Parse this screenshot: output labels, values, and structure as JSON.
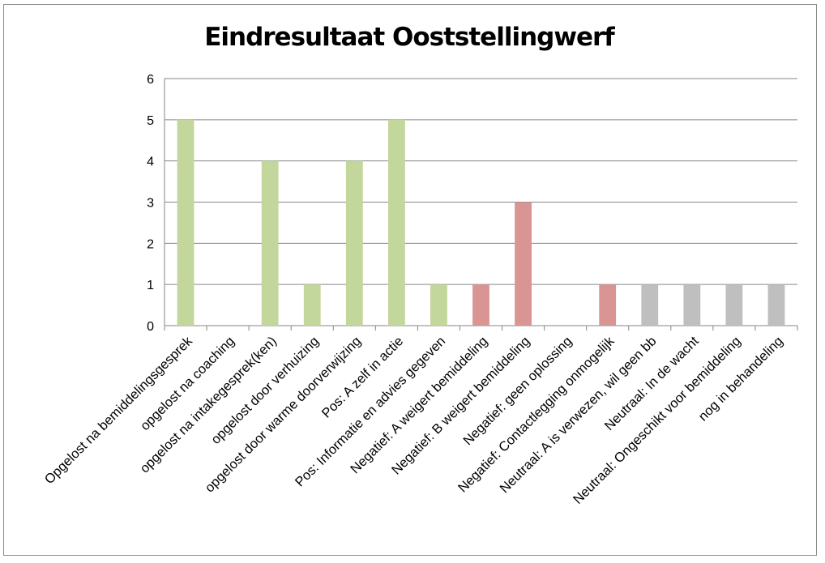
{
  "chart_data": {
    "type": "bar",
    "title": "Eindresultaat Ooststellingwerf",
    "xlabel": "",
    "ylabel": "",
    "ylim": [
      0,
      6
    ],
    "yticks": [
      0,
      1,
      2,
      3,
      4,
      5,
      6
    ],
    "grid": true,
    "legend": "none",
    "categories": [
      "Opgelost na bemiddelingsgesprek",
      "opgelost na coaching",
      "opgelost na intakegesprek(ken)",
      "opgelost door verhuizing",
      "opgelost door warme doorverwijzing",
      "Pos: A zelf in actie",
      "Pos: Informatie en advies gegeven",
      "Negatief: A weigert bemiddeling",
      "Negatief: B weigert bemiddeling",
      "Negatief: geen oplossing",
      "Negatief: Contactlegging onmogelijk",
      "Neutraal: A is verwezen, wil geen bb",
      "Neutraal: In de wacht",
      "Neutraal: Ongeschikt voor bemiddeling",
      "nog in behandeling"
    ],
    "values": [
      5,
      0,
      4,
      1,
      4,
      5,
      1,
      1,
      3,
      0,
      1,
      1,
      1,
      1,
      1
    ],
    "bar_colors": [
      "#c3d69b",
      "#c3d69b",
      "#c3d69b",
      "#c3d69b",
      "#c3d69b",
      "#c3d69b",
      "#c3d69b",
      "#d99594",
      "#d99594",
      "#d99594",
      "#d99594",
      "#bfbfbf",
      "#bfbfbf",
      "#bfbfbf",
      "#bfbfbf"
    ],
    "gridline_color": "#868686"
  }
}
